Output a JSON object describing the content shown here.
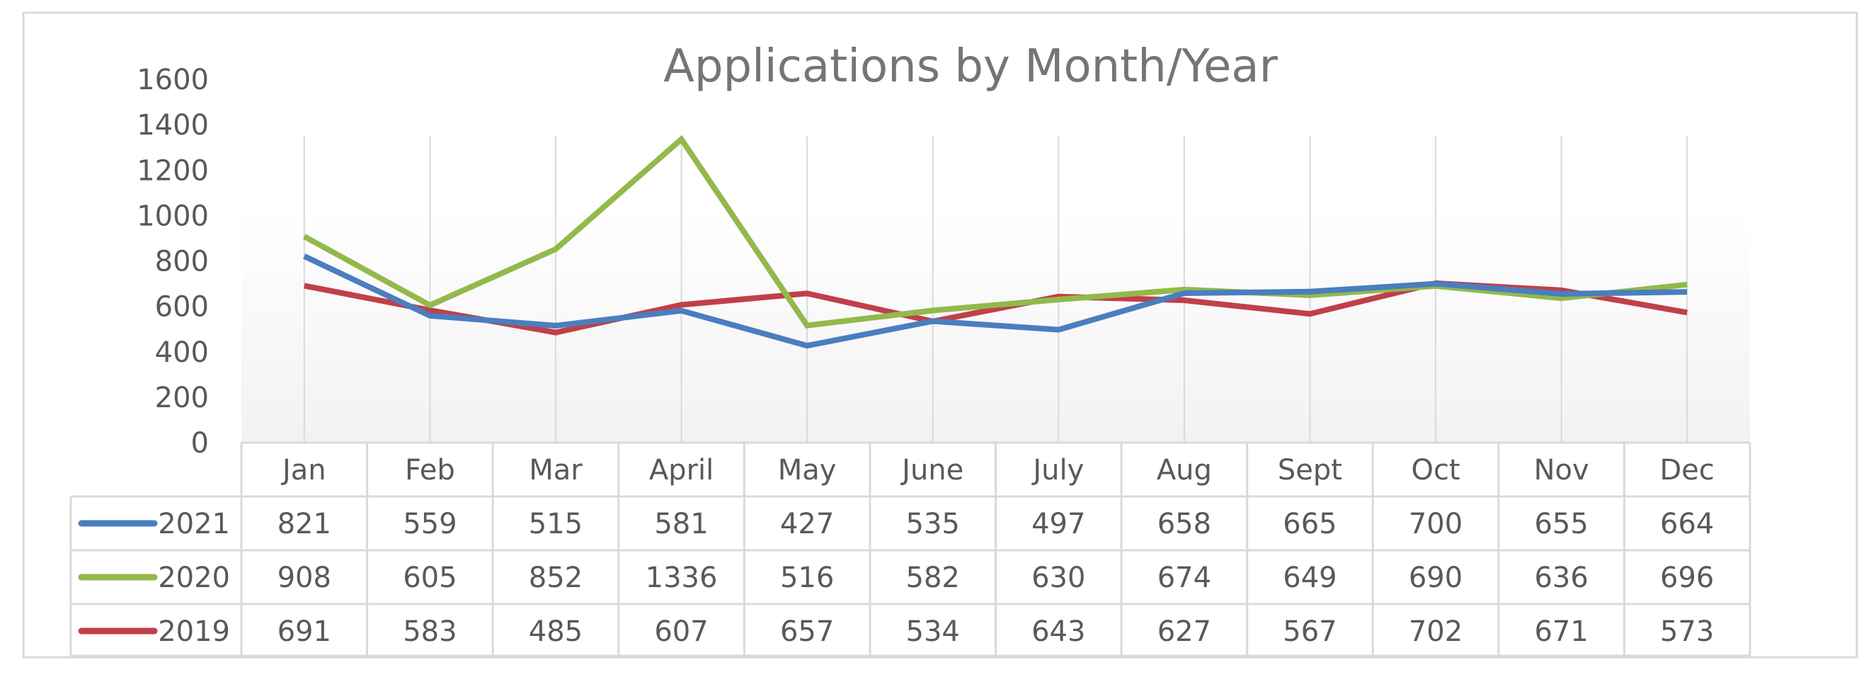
{
  "chart_data": {
    "type": "line",
    "title": "Applications by Month/Year",
    "categories": [
      "Jan",
      "Feb",
      "Mar",
      "April",
      "May",
      "June",
      "July",
      "Aug",
      "Sept",
      "Oct",
      "Nov",
      "Dec"
    ],
    "series": [
      {
        "name": "2021",
        "color": "#4a7ebf",
        "values": [
          821,
          559,
          515,
          581,
          427,
          535,
          497,
          658,
          665,
          700,
          655,
          664
        ]
      },
      {
        "name": "2020",
        "color": "#93b94b",
        "values": [
          908,
          605,
          852,
          1336,
          516,
          582,
          630,
          674,
          649,
          690,
          636,
          696
        ]
      },
      {
        "name": "2019",
        "color": "#c0404a",
        "values": [
          691,
          583,
          485,
          607,
          657,
          534,
          643,
          627,
          567,
          702,
          671,
          573
        ]
      }
    ],
    "ylim": [
      0,
      1600
    ],
    "yticks": [
      0,
      200,
      400,
      600,
      800,
      1000,
      1200,
      1400,
      1600
    ],
    "grid": "vertical",
    "legend": "data-table"
  }
}
